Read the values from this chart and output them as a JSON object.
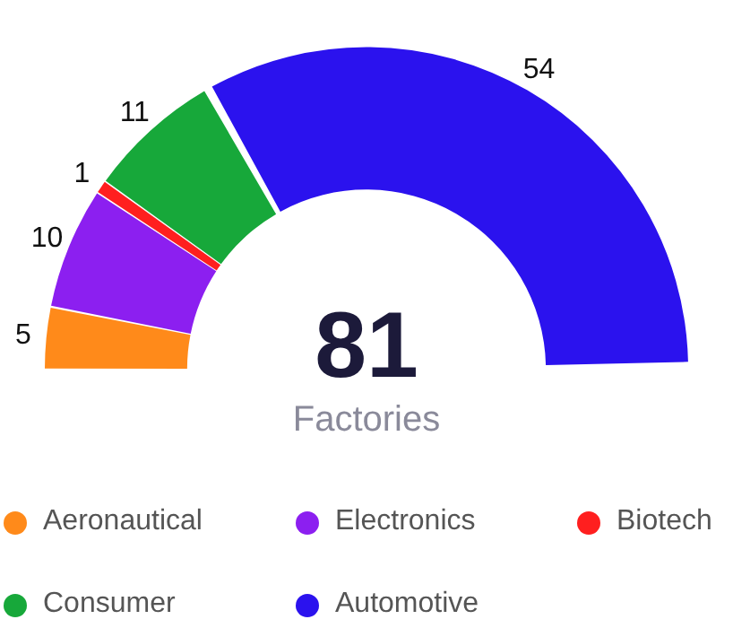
{
  "chart_data": {
    "type": "donut",
    "categories": [
      "Aeronautical",
      "Electronics",
      "Biotech",
      "Consumer",
      "Automotive"
    ],
    "values": [
      5,
      10,
      1,
      11,
      54
    ],
    "colors": [
      "#ff8a1a",
      "#8c1ff0",
      "#ff1f1f",
      "#17a83a",
      "#2b12ee"
    ],
    "data_labels": true,
    "legend": "bottom",
    "annotations": [
      "81",
      "Factories"
    ]
  }
}
